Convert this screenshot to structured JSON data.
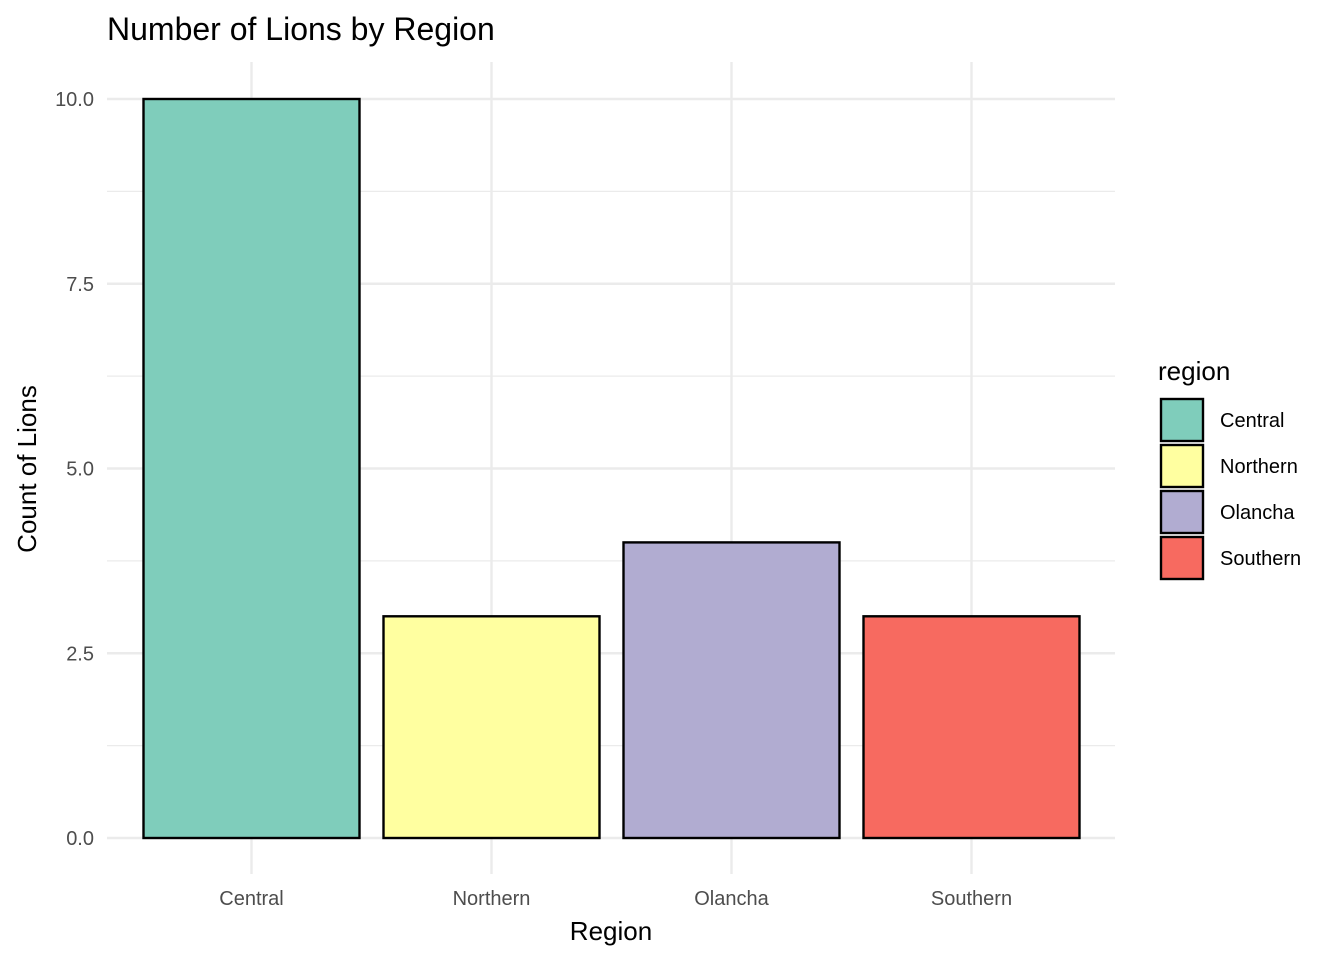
{
  "chart_data": {
    "type": "bar",
    "title": "Number of Lions by Region",
    "xlabel": "Region",
    "ylabel": "Count of Lions",
    "categories": [
      "Central",
      "Northern",
      "Olancha",
      "Southern"
    ],
    "values": [
      10,
      3,
      4,
      3
    ],
    "colors": [
      "#7fcdbb",
      "#ffffa0",
      "#b1acd1",
      "#f76a60"
    ],
    "ylim": [
      0,
      10.5
    ],
    "yticks": [
      0,
      2.5,
      5,
      7.5,
      10
    ],
    "ytick_labels": [
      "0.0",
      "2.5",
      "5.0",
      "7.5",
      "10.0"
    ],
    "grid": true,
    "legend": {
      "title": "region",
      "placement": "right",
      "entries": [
        "Central",
        "Northern",
        "Olancha",
        "Southern"
      ]
    }
  }
}
